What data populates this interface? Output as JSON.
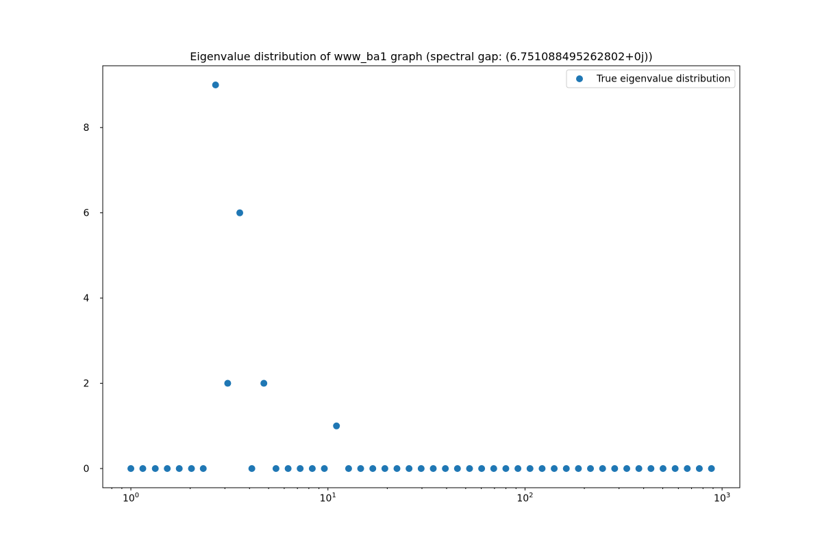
{
  "chart_data": {
    "type": "scatter",
    "title": "Eigenvalue distribution of www_ba1 graph (spectral gap: (6.751088495262802+0j))",
    "xlabel": "",
    "ylabel": "",
    "xscale": "log",
    "xlim": [
      0.72,
      1230
    ],
    "ylim": [
      -0.45,
      9.45
    ],
    "grid": false,
    "legend_position": "top-right",
    "marker_color": "#1f77b4",
    "x_ticks": [
      {
        "value": 1,
        "exponent": "0"
      },
      {
        "value": 10,
        "exponent": "1"
      },
      {
        "value": 100,
        "exponent": "2"
      },
      {
        "value": 1000,
        "exponent": "3"
      }
    ],
    "x_tick_base": "10",
    "y_ticks": [
      0,
      2,
      4,
      6,
      8
    ],
    "y_tick_labels": [
      "0",
      "2",
      "4",
      "6",
      "8"
    ],
    "series": [
      {
        "name": "True eigenvalue distribution",
        "points": [
          [
            1.0,
            0
          ],
          [
            1.15,
            0
          ],
          [
            1.33,
            0
          ],
          [
            1.53,
            0
          ],
          [
            1.76,
            0
          ],
          [
            2.03,
            0
          ],
          [
            2.33,
            0
          ],
          [
            2.69,
            9
          ],
          [
            3.1,
            2
          ],
          [
            3.57,
            6
          ],
          [
            4.11,
            0
          ],
          [
            4.73,
            2
          ],
          [
            5.45,
            0
          ],
          [
            6.28,
            0
          ],
          [
            7.23,
            0
          ],
          [
            8.33,
            0
          ],
          [
            9.59,
            0
          ],
          [
            11.05,
            1
          ],
          [
            12.73,
            0
          ],
          [
            14.66,
            0
          ],
          [
            16.89,
            0
          ],
          [
            19.45,
            0
          ],
          [
            22.4,
            0
          ],
          [
            25.8,
            0
          ],
          [
            29.72,
            0
          ],
          [
            34.23,
            0
          ],
          [
            39.43,
            0
          ],
          [
            45.41,
            0
          ],
          [
            52.31,
            0
          ],
          [
            60.25,
            0
          ],
          [
            69.39,
            0
          ],
          [
            79.93,
            0
          ],
          [
            92.06,
            0
          ],
          [
            106.03,
            0
          ],
          [
            122.12,
            0
          ],
          [
            140.66,
            0
          ],
          [
            162.01,
            0
          ],
          [
            186.6,
            0
          ],
          [
            214.92,
            0
          ],
          [
            247.54,
            0
          ],
          [
            285.11,
            0
          ],
          [
            328.39,
            0
          ],
          [
            378.23,
            0
          ],
          [
            435.64,
            0
          ],
          [
            501.76,
            0
          ],
          [
            577.92,
            0
          ],
          [
            665.64,
            0
          ],
          [
            766.67,
            0
          ],
          [
            883.03,
            0
          ]
        ]
      }
    ]
  }
}
